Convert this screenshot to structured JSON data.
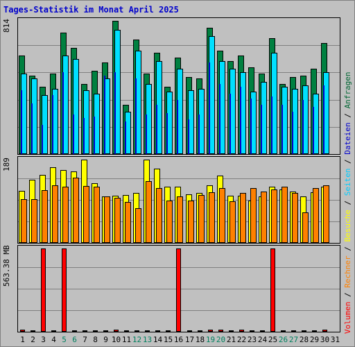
{
  "title": "Tages-Statistik im Monat April 2025",
  "axis_labels": {
    "top": "814",
    "middle": "189",
    "bottom": "563.38 MB"
  },
  "legend": [
    {
      "text": "Volumen",
      "color": "#ff0000"
    },
    {
      "text": "/",
      "color": "#000000"
    },
    {
      "text": "Rechner",
      "color": "#ff8000"
    },
    {
      "text": "/",
      "color": "#000000"
    },
    {
      "text": "Besuche",
      "color": "#ffff00"
    },
    {
      "text": "/",
      "color": "#000000"
    },
    {
      "text": "Seiten",
      "color": "#00ccff"
    },
    {
      "text": "/",
      "color": "#000000"
    },
    {
      "text": "Dateien",
      "color": "#0000cc"
    },
    {
      "text": "/",
      "color": "#000000"
    },
    {
      "text": "Anfragen",
      "color": "#006633"
    }
  ],
  "days": [
    "1",
    "2",
    "3",
    "4",
    "5",
    "6",
    "7",
    "8",
    "9",
    "10",
    "11",
    "12",
    "13",
    "14",
    "15",
    "16",
    "17",
    "18",
    "19",
    "20",
    "21",
    "22",
    "23",
    "24",
    "25",
    "26",
    "27",
    "28",
    "29",
    "30",
    "31"
  ],
  "weekend_days": [
    "5",
    "6",
    "12",
    "13",
    "19",
    "20",
    "26",
    "27"
  ],
  "colors": {
    "background": "#c0c0c0",
    "anfragen": "#008040",
    "dateien": "#0000cc",
    "seiten": "#00e0ff",
    "besuche": "#ffff00",
    "rechner": "#ff8000",
    "volumen": "#ff0000",
    "title": "#0000cc",
    "weekend_label": "#00805f"
  },
  "chart_data": [
    {
      "type": "bar",
      "name": "Anfragen / Dateien / Seiten",
      "ylim": [
        0,
        814
      ],
      "categories": [
        "1",
        "2",
        "3",
        "4",
        "5",
        "6",
        "7",
        "8",
        "9",
        "10",
        "11",
        "12",
        "13",
        "14",
        "15",
        "16",
        "17",
        "18",
        "19",
        "20",
        "21",
        "22",
        "23",
        "24",
        "25",
        "26",
        "27",
        "28",
        "29",
        "30",
        "31"
      ],
      "series": [
        {
          "name": "Anfragen",
          "values": [
            600,
            480,
            410,
            490,
            740,
            650,
            430,
            510,
            560,
            814,
            300,
            700,
            490,
            620,
            410,
            590,
            470,
            460,
            770,
            630,
            570,
            600,
            530,
            490,
            710,
            430,
            470,
            480,
            520,
            680,
            0
          ]
        },
        {
          "name": "Dateien",
          "values": [
            390,
            310,
            180,
            360,
            500,
            240,
            220,
            230,
            480,
            500,
            200,
            460,
            240,
            300,
            250,
            330,
            210,
            240,
            560,
            430,
            370,
            410,
            340,
            300,
            350,
            300,
            260,
            330,
            290,
            420,
            0
          ]
        },
        {
          "name": "Seiten",
          "values": [
            490,
            460,
            360,
            400,
            600,
            580,
            390,
            370,
            460,
            760,
            260,
            630,
            430,
            570,
            380,
            520,
            390,
            400,
            720,
            570,
            520,
            500,
            380,
            440,
            620,
            410,
            400,
            420,
            370,
            500,
            0
          ]
        }
      ]
    },
    {
      "type": "bar",
      "name": "Besuche / Rechner",
      "ylim": [
        0,
        189
      ],
      "categories": [
        "1",
        "2",
        "3",
        "4",
        "5",
        "6",
        "7",
        "8",
        "9",
        "10",
        "11",
        "12",
        "13",
        "14",
        "15",
        "16",
        "17",
        "18",
        "19",
        "20",
        "21",
        "22",
        "23",
        "24",
        "25",
        "26",
        "27",
        "28",
        "29",
        "30",
        "31"
      ],
      "series": [
        {
          "name": "Besuche",
          "values": [
            118,
            143,
            155,
            172,
            165,
            163,
            189,
            135,
            106,
            107,
            108,
            114,
            189,
            169,
            128,
            128,
            111,
            114,
            130,
            153,
            107,
            107,
            96,
            106,
            127,
            121,
            116,
            106,
            115,
            127,
            0
          ]
        },
        {
          "name": "Rechner",
          "values": [
            100,
            100,
            120,
            130,
            127,
            148,
            129,
            128,
            106,
            103,
            93,
            78,
            140,
            124,
            96,
            105,
            96,
            108,
            115,
            125,
            94,
            114,
            125,
            117,
            122,
            128,
            114,
            70,
            125,
            130,
            0
          ]
        }
      ]
    },
    {
      "type": "bar",
      "name": "Volumen",
      "ylim": [
        0,
        563.38
      ],
      "unit": "MB",
      "categories": [
        "1",
        "2",
        "3",
        "4",
        "5",
        "6",
        "7",
        "8",
        "9",
        "10",
        "11",
        "12",
        "13",
        "14",
        "15",
        "16",
        "17",
        "18",
        "19",
        "20",
        "21",
        "22",
        "23",
        "24",
        "25",
        "26",
        "27",
        "28",
        "29",
        "30",
        "31"
      ],
      "series": [
        {
          "name": "Volumen",
          "values": [
            12,
            6,
            563.38,
            6,
            563.38,
            6,
            6,
            6,
            6,
            12,
            6,
            6,
            6,
            6,
            6,
            563.38,
            6,
            6,
            12,
            12,
            6,
            12,
            6,
            6,
            563.38,
            6,
            6,
            6,
            6,
            12,
            0
          ]
        }
      ]
    }
  ]
}
